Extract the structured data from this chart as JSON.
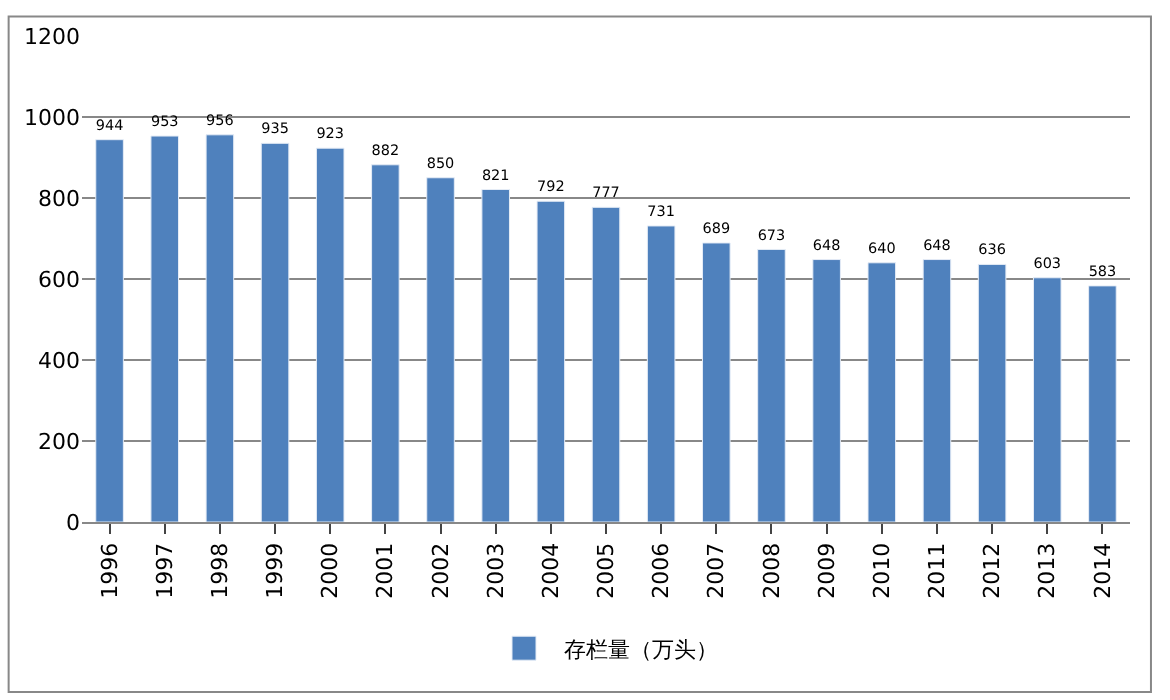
{
  "chart_data": {
    "type": "bar",
    "categories": [
      "1996",
      "1997",
      "1998",
      "1999",
      "2000",
      "2001",
      "2002",
      "2003",
      "2004",
      "2005",
      "2006",
      "2007",
      "2008",
      "2009",
      "2010",
      "2011",
      "2012",
      "2013",
      "2014"
    ],
    "series": [
      {
        "name": "存栏量（万头）",
        "color": "#4f81bd",
        "values": [
          944,
          953,
          956,
          935,
          923,
          882,
          850,
          821,
          792,
          777,
          731,
          689,
          673,
          648,
          640,
          648,
          636,
          603,
          583
        ]
      }
    ],
    "ylim": [
      0,
      1200
    ],
    "yticks": [
      0,
      200,
      400,
      600,
      800,
      1000,
      1200
    ],
    "grid": "y",
    "legend": "bottom",
    "data_labels": true
  }
}
